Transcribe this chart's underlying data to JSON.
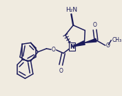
{
  "bg_color": "#f0ebe0",
  "line_color": "#1a1a5a",
  "text_color": "#1a1a5a",
  "bond_lw": 1.1,
  "figsize": [
    1.77,
    1.4
  ],
  "dpi": 100,
  "nh2_label": "H₂N",
  "o_label": "O",
  "n_label": "N",
  "ch3_label": "OCH₃"
}
